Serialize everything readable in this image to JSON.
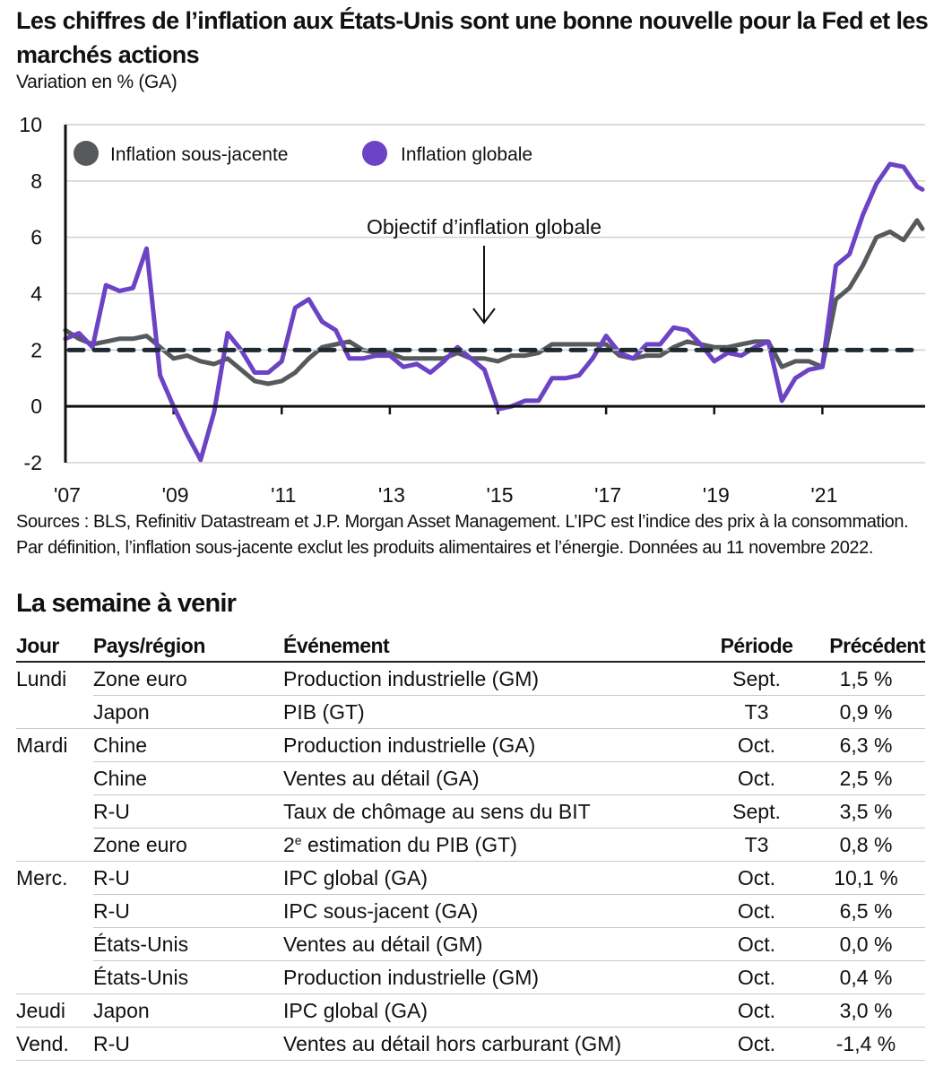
{
  "header": {
    "title": "Les chiffres de l’inflation aux États-Unis sont une bonne nouvelle pour la Fed et les marchés actions",
    "subtitle": "Variation en % (GA)"
  },
  "chart_data": {
    "type": "line",
    "title": "Les chiffres de l’inflation aux États-Unis sont une bonne nouvelle pour la Fed et les marchés actions",
    "subtitle": "Variation en % (GA)",
    "xlabel": "",
    "ylabel": "",
    "ylim": [
      -2,
      10
    ],
    "yticks": [
      -2,
      0,
      2,
      4,
      6,
      8,
      10
    ],
    "xlim": [
      2007,
      2022.9
    ],
    "xticks": [
      2007,
      2009,
      2011,
      2013,
      2015,
      2017,
      2019,
      2021
    ],
    "xtick_labels": [
      "'07",
      "'09",
      "'11",
      "'13",
      "'15",
      "'17",
      "'19",
      "'21"
    ],
    "grid": true,
    "legend_placement": "top-left",
    "reference_line": {
      "value": 2,
      "label": "Objectif d’inflation globale",
      "style": "dashed",
      "color": "#1f2a30"
    },
    "annotation": {
      "text": "Objectif d’inflation globale",
      "x": 2014.8,
      "points_to": 2
    },
    "x": [
      2007.0,
      2007.25,
      2007.5,
      2007.75,
      2008.0,
      2008.25,
      2008.5,
      2008.75,
      2009.0,
      2009.25,
      2009.5,
      2009.75,
      2010.0,
      2010.25,
      2010.5,
      2010.75,
      2011.0,
      2011.25,
      2011.5,
      2011.75,
      2012.0,
      2012.25,
      2012.5,
      2012.75,
      2013.0,
      2013.25,
      2013.5,
      2013.75,
      2014.0,
      2014.25,
      2014.5,
      2014.75,
      2015.0,
      2015.25,
      2015.5,
      2015.75,
      2016.0,
      2016.25,
      2016.5,
      2016.75,
      2017.0,
      2017.25,
      2017.5,
      2017.75,
      2018.0,
      2018.25,
      2018.5,
      2018.75,
      2019.0,
      2019.25,
      2019.5,
      2019.75,
      2020.0,
      2020.25,
      2020.5,
      2020.75,
      2021.0,
      2021.25,
      2021.5,
      2021.75,
      2022.0,
      2022.25,
      2022.5,
      2022.75,
      2022.85
    ],
    "series": [
      {
        "name": "Inflation sous-jacente",
        "color": "#575a5c",
        "values": [
          2.7,
          2.4,
          2.2,
          2.3,
          2.4,
          2.4,
          2.5,
          2.1,
          1.7,
          1.8,
          1.6,
          1.5,
          1.7,
          1.3,
          0.9,
          0.8,
          0.9,
          1.2,
          1.7,
          2.1,
          2.2,
          2.3,
          2.0,
          1.9,
          1.9,
          1.7,
          1.7,
          1.7,
          1.7,
          1.9,
          1.7,
          1.7,
          1.6,
          1.8,
          1.8,
          1.9,
          2.2,
          2.2,
          2.2,
          2.2,
          2.2,
          1.8,
          1.7,
          1.8,
          1.8,
          2.1,
          2.3,
          2.2,
          2.1,
          2.1,
          2.2,
          2.3,
          2.3,
          1.4,
          1.6,
          1.6,
          1.4,
          3.8,
          4.2,
          5.0,
          6.0,
          6.2,
          5.9,
          6.6,
          6.3
        ]
      },
      {
        "name": "Inflation globale",
        "color": "#6b43c4",
        "values": [
          2.4,
          2.6,
          2.1,
          4.3,
          4.1,
          4.2,
          5.6,
          1.1,
          0.0,
          -1.0,
          -1.9,
          -0.2,
          2.6,
          2.0,
          1.2,
          1.2,
          1.6,
          3.5,
          3.8,
          3.0,
          2.7,
          1.7,
          1.7,
          1.8,
          1.8,
          1.4,
          1.5,
          1.2,
          1.6,
          2.1,
          1.7,
          1.3,
          -0.1,
          0.0,
          0.2,
          0.2,
          1.0,
          1.0,
          1.1,
          1.7,
          2.5,
          1.9,
          1.7,
          2.2,
          2.2,
          2.8,
          2.7,
          2.2,
          1.6,
          1.9,
          1.8,
          2.1,
          2.3,
          0.2,
          1.0,
          1.3,
          1.4,
          5.0,
          5.4,
          6.8,
          7.9,
          8.6,
          8.5,
          7.8,
          7.7
        ]
      }
    ]
  },
  "sources": "Sources : BLS, Refinitiv Datastream et J.P. Morgan Asset Management. L’IPC est l’indice des prix à la consommation. Par définition, l’inflation sous-jacente exclut les produits alimentaires et l’énergie. Données au 11 novembre 2022.",
  "week_ahead": {
    "title": "La semaine à venir",
    "headers": {
      "day": "Jour",
      "country": "Pays/région",
      "event": "Événement",
      "period": "Période",
      "previous": "Précédent"
    },
    "rows": [
      {
        "day": "Lundi",
        "country": "Zone euro",
        "event": "Production industrielle (GM)",
        "period": "Sept.",
        "previous": "1,5 %"
      },
      {
        "day": "",
        "country": "Japon",
        "event": "PIB (GT)",
        "period": "T3",
        "previous": "0,9 %"
      },
      {
        "day": "Mardi",
        "country": "Chine",
        "event": "Production industrielle (GA)",
        "period": "Oct.",
        "previous": "6,3 %"
      },
      {
        "day": "",
        "country": "Chine",
        "event": "Ventes au détail (GA)",
        "period": "Oct.",
        "previous": "2,5 %"
      },
      {
        "day": "",
        "country": "R-U",
        "event": "Taux de chômage au sens du BIT",
        "period": "Sept.",
        "previous": "3,5 %"
      },
      {
        "day": "",
        "country": "Zone euro",
        "event_prefix": "2",
        "event_sup": "e",
        "event": " estimation du PIB (GT)",
        "period": "T3",
        "previous": "0,8 %"
      },
      {
        "day": "Merc.",
        "country": "R-U",
        "event": "IPC global (GA)",
        "period": "Oct.",
        "previous": "10,1 %"
      },
      {
        "day": "",
        "country": "R-U",
        "event": "IPC sous-jacent (GA)",
        "period": "Oct.",
        "previous": "6,5 %"
      },
      {
        "day": "",
        "country": "États-Unis",
        "event": "Ventes au détail (GM)",
        "period": "Oct.",
        "previous": "0,0 %"
      },
      {
        "day": "",
        "country": "États-Unis",
        "event": "Production industrielle (GM)",
        "period": "Oct.",
        "previous": "0,4 %"
      },
      {
        "day": "Jeudi",
        "country": "Japon",
        "event": "IPC global (GA)",
        "period": "Oct.",
        "previous": "3,0 %"
      },
      {
        "day": "Vend.",
        "country": "R-U",
        "event": "Ventes au détail hors carburant (GM)",
        "period": "Oct.",
        "previous": "-1,4 %"
      }
    ]
  }
}
